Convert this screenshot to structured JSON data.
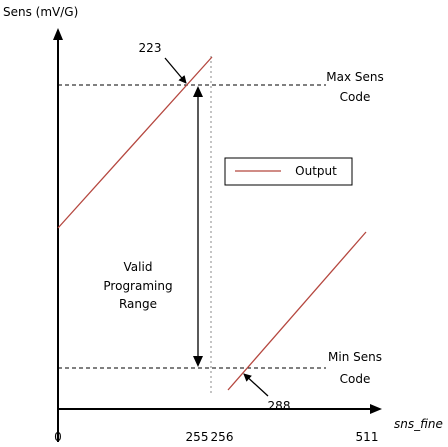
{
  "y_axis_label": "Sens (mV/G)",
  "x_axis_label": "sns_fine",
  "x_labels": [
    "0",
    "255",
    "256",
    "511"
  ],
  "max_label": [
    "Max Sens",
    "Code"
  ],
  "min_label": [
    "Min Sens",
    "Code"
  ],
  "upper_callout": "223",
  "lower_callout": "288",
  "range_label": [
    "Valid",
    "Programing",
    "Range"
  ],
  "legend": "Output"
}
